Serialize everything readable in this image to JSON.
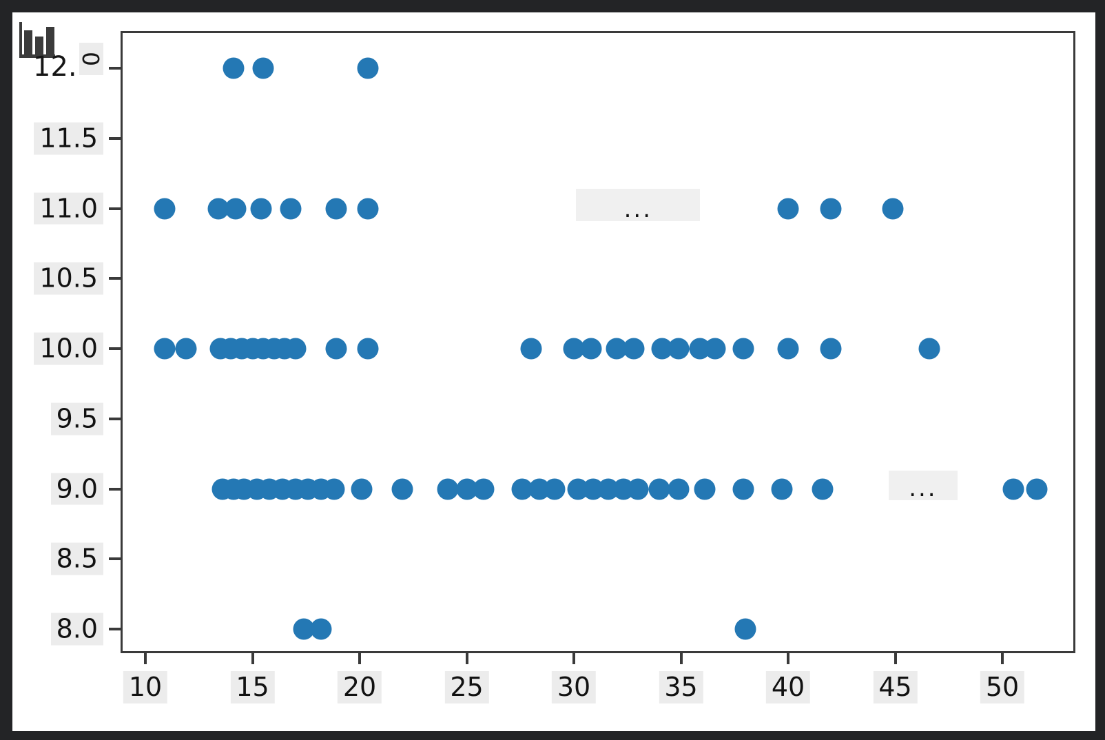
{
  "window": {
    "frame_color": "#232426",
    "canvas_color": "#ffffff",
    "spine_color": "#3a3a3a",
    "tick_highlight_color": "#ececec",
    "annotation_box_color": "#f0f0f0"
  },
  "overlay": {
    "chart_icon": "bar-chart-icon",
    "top_tick_label_full": "12.0",
    "top_tick_label_prefix": "12.",
    "top_tick_label_rotated_char": "0"
  },
  "chart_data": {
    "type": "scatter",
    "title": "",
    "xlabel": "",
    "ylabel": "",
    "grid": false,
    "legend": null,
    "marker_color": "#2478b4",
    "xlim": [
      8.9,
      53.5
    ],
    "ylim": [
      7.8,
      12.45
    ],
    "x_tick_values": [
      10,
      15,
      20,
      25,
      30,
      35,
      40,
      45,
      50
    ],
    "x_tick_labels": [
      "10",
      "15",
      "20",
      "25",
      "30",
      "35",
      "40",
      "45",
      "50"
    ],
    "y_tick_values": [
      8,
      8.5,
      9,
      9.5,
      10,
      10.5,
      11,
      11.5,
      12
    ],
    "y_tick_labels": [
      "8.0",
      "8.5",
      "9.0",
      "9.5",
      "10.0",
      "10.5",
      "11.0",
      "11.5",
      "12.0"
    ],
    "rows": [
      {
        "y": 12,
        "x": [
          14.1,
          15.5,
          20.4
        ]
      },
      {
        "y": 11,
        "x": [
          10.9,
          13.4,
          14.2,
          15.4,
          16.8,
          18.9,
          20.4,
          40.0,
          42.0,
          44.9
        ]
      },
      {
        "y": 10,
        "x": [
          10.9,
          11.9,
          13.5,
          14.0,
          14.5,
          15.0,
          15.5,
          16.0,
          16.5,
          17.0,
          18.9,
          20.4,
          28.0,
          30.0,
          30.8,
          32.0,
          32.8,
          34.1,
          34.9,
          35.9,
          36.6,
          37.9,
          40.0,
          42.0,
          46.6
        ]
      },
      {
        "y": 9,
        "x": [
          13.6,
          14.1,
          14.6,
          15.2,
          15.8,
          16.4,
          17.0,
          17.6,
          18.2,
          18.8,
          20.1,
          22.0,
          24.1,
          25.0,
          25.8,
          27.6,
          28.4,
          29.1,
          30.2,
          30.9,
          31.6,
          32.3,
          33.0,
          34.0,
          34.9,
          36.1,
          37.9,
          39.7,
          41.6,
          50.5,
          51.6
        ]
      },
      {
        "y": 8,
        "x": [
          17.4,
          18.2,
          38.0
        ]
      }
    ],
    "ellipsis_annotations": [
      {
        "text": "...",
        "x_range": [
          30.1,
          35.9
        ],
        "y_range": [
          10.91,
          11.14
        ]
      },
      {
        "text": "...",
        "x_range": [
          44.7,
          47.9
        ],
        "y_range": [
          8.92,
          9.13
        ]
      }
    ]
  }
}
